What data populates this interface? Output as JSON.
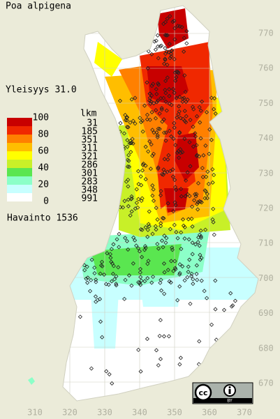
{
  "title": "Poa alpigena",
  "frequency": "Yleisyys  31.0",
  "legend": {
    "header": "lkm",
    "scale_labels": [
      100,
      80,
      60,
      40,
      20,
      0
    ],
    "colors": [
      "#c80000",
      "#f02800",
      "#ff8000",
      "#ffbe00",
      "#ffff00",
      "#c8f028",
      "#5ae650",
      "#8cffc8",
      "#c8ffff",
      "#ffffff"
    ],
    "counts": [
      31,
      185,
      351,
      311,
      321,
      286,
      301,
      283,
      348,
      991
    ]
  },
  "observations": "Havainto 1536",
  "northing_labels": [
    770,
    760,
    750,
    740,
    730,
    720,
    710,
    700,
    690,
    680,
    670
  ],
  "easting_labels": [
    310,
    320,
    330,
    340,
    350,
    360,
    370
  ],
  "license": "BY"
}
